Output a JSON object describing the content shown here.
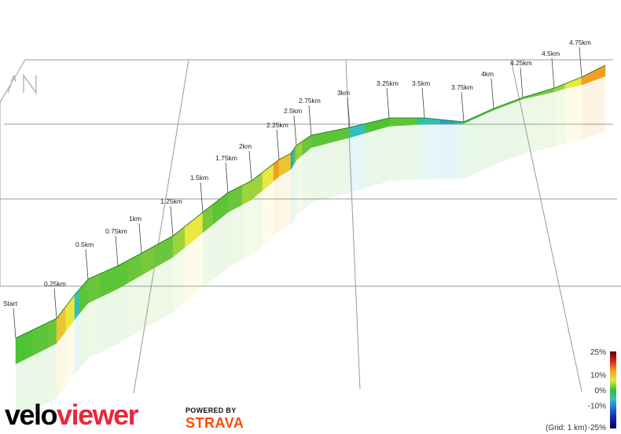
{
  "chart_data": {
    "type": "area",
    "title": "",
    "distance_markers": [
      {
        "label": "Start",
        "km": 0.0
      },
      {
        "label": "0.25km",
        "km": 0.25
      },
      {
        "label": "0.5km",
        "km": 0.5
      },
      {
        "label": "0.75km",
        "km": 0.75
      },
      {
        "label": "1km",
        "km": 1.0
      },
      {
        "label": "1.25km",
        "km": 1.25
      },
      {
        "label": "1.5km",
        "km": 1.5
      },
      {
        "label": "1.75km",
        "km": 1.75
      },
      {
        "label": "2km",
        "km": 2.0
      },
      {
        "label": "2.25km",
        "km": 2.25
      },
      {
        "label": "2.5km",
        "km": 2.5
      },
      {
        "label": "2.75km",
        "km": 2.75
      },
      {
        "label": "3km",
        "km": 3.0
      },
      {
        "label": "3.25km",
        "km": 3.25
      },
      {
        "label": "3.5km",
        "km": 3.5
      },
      {
        "label": "3.75km",
        "km": 3.75
      },
      {
        "label": "4km",
        "km": 4.0
      },
      {
        "label": "4.25km",
        "km": 4.25
      },
      {
        "label": "4.5km",
        "km": 4.5
      },
      {
        "label": "4.75km",
        "km": 4.75
      }
    ],
    "profile": {
      "km": [
        0,
        0.1,
        0.2,
        0.25,
        0.3,
        0.35,
        0.4,
        0.5,
        0.6,
        0.75,
        0.85,
        1.0,
        1.1,
        1.25,
        1.35,
        1.5,
        1.6,
        1.75,
        1.9,
        2.0,
        2.1,
        2.2,
        2.25,
        2.35,
        2.4,
        2.45,
        2.5,
        2.6,
        2.75,
        2.9,
        3.0,
        3.1,
        3.25,
        3.35,
        3.45,
        3.5,
        3.6,
        3.7,
        3.75,
        3.85,
        4.0,
        4.15,
        4.25,
        4.4,
        4.5,
        4.6,
        4.75,
        4.9
      ],
      "gradient_pct": [
        2,
        3,
        4,
        9,
        8,
        -4,
        3,
        4,
        3,
        3,
        4,
        5,
        4,
        6,
        8,
        5,
        3,
        4,
        6,
        6,
        8,
        10,
        9,
        -6,
        -3,
        5,
        6,
        4,
        3,
        3,
        -4,
        2,
        3,
        3,
        -3,
        -4,
        -6,
        -2,
        1,
        2,
        3,
        3,
        4,
        5,
        6,
        8,
        10,
        12
      ]
    },
    "gradient_legend": {
      "labels": [
        "25%",
        "10%",
        "0%",
        "-10%",
        "-25%"
      ],
      "values": [
        25,
        10,
        0,
        -10,
        -25
      ],
      "colors": [
        "#5a0000",
        "#e02020",
        "#f0a020",
        "#e8e840",
        "#30c030",
        "#30c0c0",
        "#2060e0",
        "#1020a0",
        "#100050"
      ]
    },
    "grid_note": "(Grid: 1 km)",
    "orientation": "N"
  },
  "branding": {
    "velo": "velo",
    "viewer": "viewer",
    "powered_by": "POWERED BY",
    "strava": "STRAVA"
  }
}
